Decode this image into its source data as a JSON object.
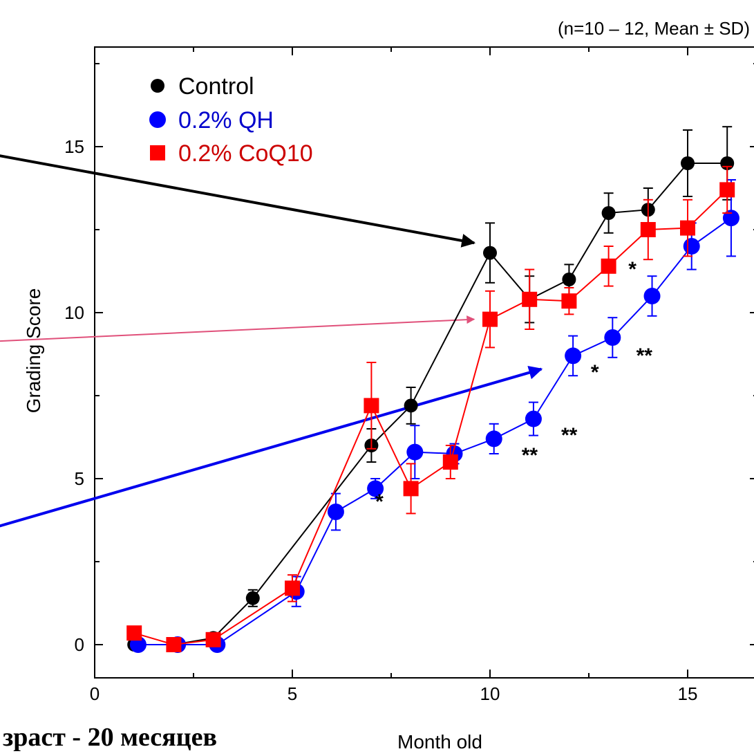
{
  "chart_data": {
    "type": "line",
    "note": "(n=10 – 12, Mean  ±  SD)",
    "xlabel": "Month old",
    "ylabel": "Grading Score",
    "caption": "зраст - 20 месяцев",
    "xlim": [
      0,
      16.5
    ],
    "ylim": [
      -1,
      18
    ],
    "xticks": [
      0,
      5,
      10,
      15
    ],
    "yticks": [
      0,
      5,
      10,
      15
    ],
    "grid": false,
    "legend_position": "top-left",
    "series": [
      {
        "name": "Control",
        "color": "#000000",
        "marker": "circle",
        "points": [
          {
            "x": 1,
            "y": 0.0,
            "err": 0.0
          },
          {
            "x": 2,
            "y": 0.0,
            "err": 0.0
          },
          {
            "x": 3,
            "y": 0.2,
            "err": 0.1
          },
          {
            "x": 4,
            "y": 1.4,
            "err": 0.25
          },
          {
            "x": 7,
            "y": 6.0,
            "err": 0.5
          },
          {
            "x": 8,
            "y": 7.2,
            "err": 0.55
          },
          {
            "x": 10,
            "y": 11.8,
            "err": 0.9
          },
          {
            "x": 11,
            "y": 10.4,
            "err": 0.7
          },
          {
            "x": 12,
            "y": 11.0,
            "err": 0.45
          },
          {
            "x": 13,
            "y": 13.0,
            "err": 0.6
          },
          {
            "x": 14,
            "y": 13.1,
            "err": 0.65
          },
          {
            "x": 15,
            "y": 14.5,
            "err": 1.0
          },
          {
            "x": 16,
            "y": 14.5,
            "err": 1.1
          }
        ]
      },
      {
        "name": "0.2% QH",
        "color": "#0000ff",
        "marker": "circle",
        "points": [
          {
            "x": 1.1,
            "y": 0.0,
            "err": 0.0
          },
          {
            "x": 2.1,
            "y": 0.0,
            "err": 0.0
          },
          {
            "x": 3.1,
            "y": 0.0,
            "err": 0.0
          },
          {
            "x": 5.1,
            "y": 1.6,
            "err": 0.45
          },
          {
            "x": 6.1,
            "y": 4.0,
            "err": 0.55
          },
          {
            "x": 7.1,
            "y": 4.7,
            "err": 0.3
          },
          {
            "x": 8.1,
            "y": 5.8,
            "err": 0.8
          },
          {
            "x": 9.1,
            "y": 5.75,
            "err": 0.3
          },
          {
            "x": 10.1,
            "y": 6.2,
            "err": 0.45
          },
          {
            "x": 11.1,
            "y": 6.8,
            "err": 0.5
          },
          {
            "x": 12.1,
            "y": 8.7,
            "err": 0.6
          },
          {
            "x": 13.1,
            "y": 9.25,
            "err": 0.6
          },
          {
            "x": 14.1,
            "y": 10.5,
            "err": 0.6
          },
          {
            "x": 15.1,
            "y": 12.0,
            "err": 0.7
          },
          {
            "x": 16.1,
            "y": 12.85,
            "err": 1.15
          }
        ]
      },
      {
        "name": "0.2% CoQ10",
        "color": "#ff0000",
        "marker": "square",
        "points": [
          {
            "x": 1,
            "y": 0.35,
            "err": 0.0
          },
          {
            "x": 2,
            "y": 0.0,
            "err": 0.0
          },
          {
            "x": 3,
            "y": 0.15,
            "err": 0.0
          },
          {
            "x": 5,
            "y": 1.7,
            "err": 0.4
          },
          {
            "x": 7,
            "y": 7.2,
            "err": 1.3
          },
          {
            "x": 8,
            "y": 4.7,
            "err": 0.75
          },
          {
            "x": 9,
            "y": 5.5,
            "err": 0.5
          },
          {
            "x": 10,
            "y": 9.8,
            "err": 0.85
          },
          {
            "x": 11,
            "y": 10.4,
            "err": 0.9
          },
          {
            "x": 12,
            "y": 10.35,
            "err": 0.4
          },
          {
            "x": 13,
            "y": 11.4,
            "err": 0.6
          },
          {
            "x": 14,
            "y": 12.5,
            "err": 0.9
          },
          {
            "x": 15,
            "y": 12.55,
            "err": 0.85
          },
          {
            "x": 16,
            "y": 13.7,
            "err": 0.7
          }
        ]
      }
    ],
    "significance": [
      {
        "x": 13.5,
        "y": 11.1,
        "label": "*"
      },
      {
        "x": 7.1,
        "y": 4.1,
        "label": "*"
      },
      {
        "x": 10.8,
        "y": 5.5,
        "label": "**"
      },
      {
        "x": 11.8,
        "y": 6.1,
        "label": "**"
      },
      {
        "x": 12.55,
        "y": 8.0,
        "label": "*"
      },
      {
        "x": 13.7,
        "y": 8.5,
        "label": "**"
      }
    ],
    "annotation_arrows": [
      {
        "color": "#000000",
        "from": [
          -3.2,
          14.9
        ],
        "to": [
          9.6,
          12.1
        ],
        "width": 4
      },
      {
        "color": "#e0507a",
        "from": [
          -3.2,
          9.1
        ],
        "to": [
          9.6,
          9.8
        ],
        "width": 2
      },
      {
        "color": "#0000ee",
        "from": [
          -3.2,
          3.3
        ],
        "to": [
          11.3,
          8.3
        ],
        "width": 4
      }
    ]
  }
}
